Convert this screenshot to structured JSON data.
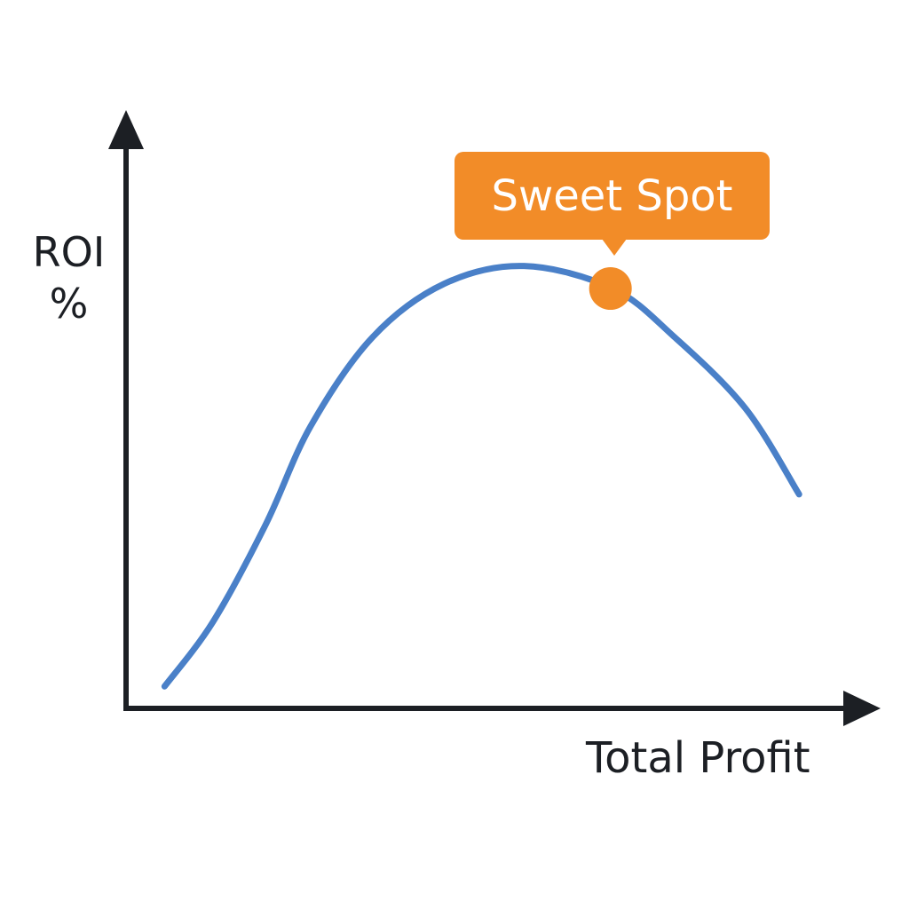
{
  "chart_data": {
    "type": "line",
    "xlabel": "Total Profit",
    "ylabel_lines": [
      "ROI",
      "%"
    ],
    "xlim": [
      0,
      100
    ],
    "ylim": [
      0,
      100
    ],
    "grid": false,
    "ticks": false,
    "series": [
      {
        "color": "#4a80c8",
        "x": [
          5.4,
          11.9,
          19.0,
          25.0,
          33.3,
          42.9,
          53.6,
          65.5,
          73.8,
          83.3,
          90.5
        ],
        "y": [
          3.7,
          14.6,
          31.1,
          47.6,
          62.6,
          71.6,
          74.6,
          70.8,
          62.6,
          50.6,
          36.1
        ]
      }
    ],
    "annotation": {
      "text": "Sweet Spot",
      "x": 65.2,
      "y": 70.8,
      "color": "#f28c28"
    }
  }
}
